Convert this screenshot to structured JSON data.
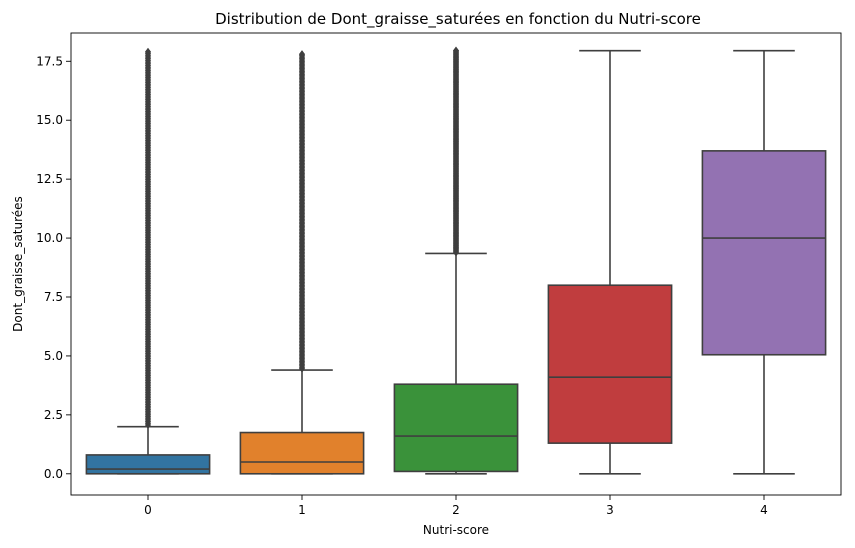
{
  "chart_data": {
    "type": "box",
    "title": "Distribution de Dont_graisse_saturées en fonction du Nutri-score",
    "xlabel": "Nutri-score",
    "ylabel": "Dont_graisse_saturées",
    "categories": [
      "0",
      "1",
      "2",
      "3",
      "4"
    ],
    "ylim": [
      -0.9,
      18.7
    ],
    "yticks": [
      0.0,
      2.5,
      5.0,
      7.5,
      10.0,
      12.5,
      15.0,
      17.5
    ],
    "ytick_labels": [
      "0.0",
      "2.5",
      "5.0",
      "7.5",
      "10.0",
      "12.5",
      "15.0",
      "17.5"
    ],
    "grid": false,
    "legend": "none",
    "boxes": [
      {
        "category": "0",
        "color": "#3274a1",
        "whisker_low": 0.0,
        "q1": 0.0,
        "median": 0.2,
        "q3": 0.8,
        "whisker_high": 2.0,
        "outlier_range": [
          2.0,
          17.9
        ]
      },
      {
        "category": "1",
        "color": "#e1812c",
        "whisker_low": 0.0,
        "q1": 0.0,
        "median": 0.5,
        "q3": 1.75,
        "whisker_high": 4.4,
        "outlier_range": [
          4.4,
          17.8
        ]
      },
      {
        "category": "2",
        "color": "#3a923a",
        "whisker_low": 0.0,
        "q1": 0.1,
        "median": 1.6,
        "q3": 3.8,
        "whisker_high": 9.35,
        "outlier_range": [
          9.35,
          17.95
        ]
      },
      {
        "category": "3",
        "color": "#c03d3e",
        "whisker_low": 0.0,
        "q1": 1.3,
        "median": 4.1,
        "q3": 8.0,
        "whisker_high": 17.95,
        "outlier_range": null
      },
      {
        "category": "4",
        "color": "#9372b2",
        "whisker_low": 0.0,
        "q1": 5.05,
        "median": 10.0,
        "q3": 13.7,
        "whisker_high": 17.95,
        "outlier_range": null
      }
    ]
  }
}
